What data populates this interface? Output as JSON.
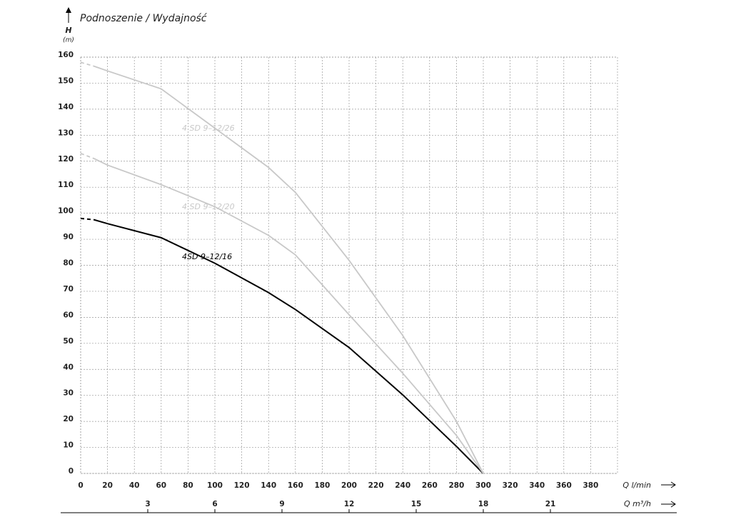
{
  "chart_data": {
    "type": "line",
    "title": "Podnoszenie / Wydajność",
    "y_label": "H",
    "y_unit": "(m)",
    "x_label": "Q l/min",
    "x2_label": "Q m³/h",
    "x": [
      0,
      10,
      20,
      60,
      100,
      140,
      160,
      200,
      240,
      280,
      300
    ],
    "series": [
      {
        "name": "4SD 9–12/16",
        "color": "#000000",
        "values": [
          98,
          97.5,
          96,
          90.6,
          80.8,
          69.5,
          63,
          48.4,
          30.2,
          10.4,
          0
        ]
      },
      {
        "name": "4 SD 9–12/20",
        "color": "#c8c8c8",
        "values": [
          123,
          121,
          118.5,
          111,
          102.5,
          91.5,
          84,
          61,
          38.5,
          14.6,
          0
        ]
      },
      {
        "name": "4 SD 9–12/26",
        "color": "#c8c8c8",
        "values": [
          158,
          156.5,
          154.7,
          147.8,
          132.7,
          117.6,
          108,
          81.9,
          53,
          20,
          0
        ]
      }
    ],
    "xlim": [
      0,
      400
    ],
    "xticks": [
      0,
      20,
      40,
      60,
      80,
      100,
      120,
      140,
      160,
      180,
      200,
      220,
      240,
      260,
      280,
      300,
      320,
      340,
      360,
      380
    ],
    "x2lim": [
      0,
      24
    ],
    "x2ticks": [
      3,
      6,
      9,
      12,
      15,
      18,
      21
    ],
    "ylim": [
      0,
      160
    ],
    "yticks": [
      0,
      10,
      20,
      30,
      40,
      50,
      60,
      70,
      80,
      90,
      100,
      110,
      120,
      130,
      140,
      150,
      160
    ],
    "grid": true
  }
}
